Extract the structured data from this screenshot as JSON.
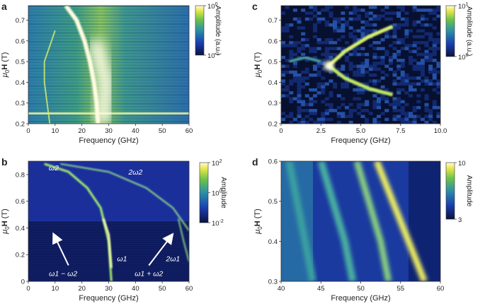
{
  "chart_data": [
    {
      "panel": "a",
      "type": "heatmap",
      "xlabel": "Frequency (GHz)",
      "ylabel": "μ0H (T)",
      "xlim": [
        0,
        60
      ],
      "ylim": [
        0.2,
        0.77
      ],
      "xticks": [
        "0",
        "10",
        "20",
        "30",
        "40",
        "50",
        "60"
      ],
      "yticks": [
        "0.2",
        "0.3",
        "0.4",
        "0.5",
        "0.6",
        "0.7"
      ],
      "colorbar": {
        "label": "Amplitude (a.u.)",
        "ticks": [
          "10^0",
          "10^-1"
        ],
        "scale": "log",
        "colormap": "blue-green-yellow-white"
      },
      "features": [
        {
          "name": "main mode",
          "points": [
            [
              14,
              0.77
            ],
            [
              18,
              0.7
            ],
            [
              21,
              0.6
            ],
            [
              23,
              0.5
            ],
            [
              24.5,
              0.4
            ],
            [
              25.5,
              0.3
            ],
            [
              26,
              0.2
            ]
          ]
        },
        {
          "name": "broad band",
          "points": [
            [
              28,
              0.2
            ],
            [
              29,
              0.4
            ],
            [
              27,
              0.5
            ],
            [
              25,
              0.6
            ]
          ]
        },
        {
          "name": "weak arc",
          "points": [
            [
              8,
              0.2
            ],
            [
              6,
              0.4
            ],
            [
              6,
              0.5
            ],
            [
              10,
              0.65
            ]
          ]
        }
      ]
    },
    {
      "panel": "b",
      "type": "heatmap",
      "xlabel": "Frequency (GHz)",
      "ylabel": "μ0H (T)",
      "xlim": [
        0,
        60
      ],
      "ylim": [
        0,
        0.9
      ],
      "xticks": [
        "0",
        "10",
        "20",
        "30",
        "40",
        "50",
        "60"
      ],
      "yticks": [
        "0",
        "0.2",
        "0.4",
        "0.6",
        "0.8"
      ],
      "colorbar": {
        "label": "Amplitude",
        "ticks": [
          "10^2",
          "10^0",
          "10^-2"
        ],
        "scale": "log",
        "colormap": "blue-green-yellow-white"
      },
      "annotations": [
        "ω2",
        "2ω2",
        "ω1",
        "2ω1",
        "ω1 − ω2",
        "ω1 + ω2"
      ],
      "curves": [
        {
          "name": "ω2",
          "points": [
            [
              6,
              0.88
            ],
            [
              15,
              0.82
            ],
            [
              22,
              0.7
            ],
            [
              27,
              0.55
            ],
            [
              30,
              0.3
            ],
            [
              31,
              0
            ]
          ]
        },
        {
          "name": "2ω2",
          "points": [
            [
              12,
              0.88
            ],
            [
              30,
              0.82
            ],
            [
              44,
              0.7
            ],
            [
              54,
              0.55
            ],
            [
              60,
              0.38
            ]
          ]
        },
        {
          "name": "ω1",
          "points": [
            [
              28,
              0.47
            ],
            [
              30,
              0.35
            ],
            [
              31,
              0.1
            ]
          ]
        },
        {
          "name": "2ω1",
          "points": [
            [
              56,
              0.47
            ],
            [
              58,
              0.3
            ],
            [
              60,
              0.15
            ]
          ]
        }
      ]
    },
    {
      "panel": "c",
      "type": "heatmap",
      "xlabel": "Frequency (GHz)",
      "ylabel": "μ0H (T)",
      "xlim": [
        0,
        10
      ],
      "ylim": [
        0.2,
        0.77
      ],
      "xticks": [
        "0",
        "2.5",
        "5.0",
        "7.5",
        "10.0"
      ],
      "yticks": [
        "0.2",
        "0.3",
        "0.4",
        "0.5",
        "0.6",
        "0.7"
      ],
      "colorbar": {
        "label": "Amplitude (a.u.)",
        "ticks": [
          "10^1",
          "10^0"
        ],
        "scale": "log",
        "colormap": "blue-green-yellow-white"
      },
      "curves": [
        {
          "name": "upper branch",
          "points": [
            [
              3.0,
              0.48
            ],
            [
              4.0,
              0.55
            ],
            [
              5.5,
              0.62
            ],
            [
              7.0,
              0.67
            ]
          ]
        },
        {
          "name": "lower branch",
          "points": [
            [
              3.0,
              0.48
            ],
            [
              4.0,
              0.42
            ],
            [
              5.5,
              0.37
            ],
            [
              7.0,
              0.34
            ]
          ]
        },
        {
          "name": "low-frequency branch",
          "points": [
            [
              0.5,
              0.5
            ],
            [
              1.5,
              0.52
            ],
            [
              2.5,
              0.5
            ]
          ]
        },
        {
          "name": "horizontal line",
          "points": [
            [
              0,
              0.25
            ],
            [
              10,
              0.25
            ]
          ]
        }
      ]
    },
    {
      "panel": "d",
      "type": "heatmap",
      "xlabel": "Frequency (GHz)",
      "ylabel": "μ0H (T)",
      "xlim": [
        40,
        60
      ],
      "ylim": [
        0.3,
        0.6
      ],
      "xticks": [
        "40",
        "45",
        "50",
        "55",
        "60"
      ],
      "yticks": [
        "0.3",
        "0.4",
        "0.5",
        "0.6"
      ],
      "colorbar": {
        "label": "Amplitude",
        "ticks": [
          "10",
          "3"
        ],
        "scale": "log",
        "colormap": "blue-green-yellow-white"
      },
      "curves": [
        {
          "name": "mode 1",
          "points": [
            [
              41,
              0.6
            ],
            [
              42,
              0.5
            ],
            [
              43,
              0.4
            ],
            [
              44,
              0.3
            ]
          ]
        },
        {
          "name": "mode 2",
          "points": [
            [
              45,
              0.6
            ],
            [
              46.5,
              0.5
            ],
            [
              48,
              0.4
            ],
            [
              49,
              0.3
            ]
          ]
        },
        {
          "name": "mode 3",
          "points": [
            [
              49.5,
              0.6
            ],
            [
              51,
              0.5
            ],
            [
              52.5,
              0.4
            ],
            [
              53.5,
              0.3
            ]
          ]
        },
        {
          "name": "mode 4",
          "points": [
            [
              52,
              0.6
            ],
            [
              54,
              0.5
            ],
            [
              56,
              0.4
            ],
            [
              58,
              0.3
            ]
          ]
        }
      ]
    }
  ],
  "panels": {
    "a": {
      "letter": "a"
    },
    "b": {
      "letter": "b"
    },
    "c": {
      "letter": "c"
    },
    "d": {
      "letter": "d"
    }
  }
}
